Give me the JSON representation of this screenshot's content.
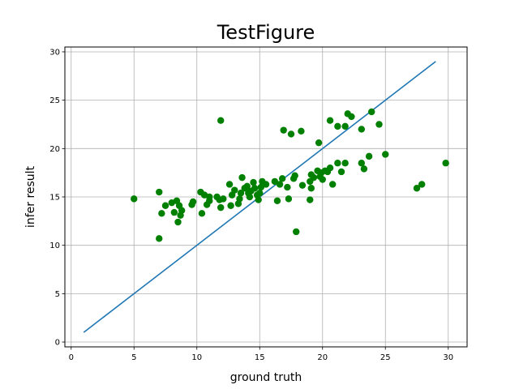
{
  "chart_data": {
    "type": "scatter",
    "title": "TestFigure",
    "xlabel": "ground truth",
    "ylabel": "infer result",
    "xlim": [
      -0.5,
      31.5
    ],
    "ylim": [
      -0.5,
      30.5
    ],
    "xticks": [
      0,
      5,
      10,
      15,
      20,
      25,
      30
    ],
    "yticks": [
      0,
      5,
      10,
      15,
      20,
      25,
      30
    ],
    "grid": true,
    "series": [
      {
        "type": "line",
        "color": "#1f77b4",
        "x": [
          1,
          29
        ],
        "y": [
          1,
          29
        ]
      },
      {
        "type": "scatter",
        "color": "#008000",
        "points": [
          [
            5.0,
            14.8
          ],
          [
            7.0,
            10.7
          ],
          [
            7.0,
            15.5
          ],
          [
            7.2,
            13.3
          ],
          [
            7.5,
            14.1
          ],
          [
            8.0,
            14.4
          ],
          [
            8.2,
            13.4
          ],
          [
            8.4,
            14.6
          ],
          [
            8.5,
            12.4
          ],
          [
            8.6,
            14.1
          ],
          [
            8.7,
            13.1
          ],
          [
            8.8,
            13.6
          ],
          [
            9.6,
            14.2
          ],
          [
            9.7,
            14.5
          ],
          [
            10.3,
            15.5
          ],
          [
            10.4,
            13.3
          ],
          [
            10.6,
            15.2
          ],
          [
            10.8,
            14.2
          ],
          [
            11.0,
            14.6
          ],
          [
            11.0,
            15.0
          ],
          [
            11.6,
            15.0
          ],
          [
            11.8,
            14.7
          ],
          [
            11.9,
            22.9
          ],
          [
            11.9,
            13.9
          ],
          [
            12.1,
            14.8
          ],
          [
            12.6,
            16.3
          ],
          [
            12.7,
            14.1
          ],
          [
            12.8,
            15.2
          ],
          [
            13.0,
            15.7
          ],
          [
            13.3,
            14.3
          ],
          [
            13.4,
            14.8
          ],
          [
            13.5,
            15.4
          ],
          [
            13.6,
            17.0
          ],
          [
            13.8,
            15.9
          ],
          [
            14.0,
            16.1
          ],
          [
            14.1,
            15.4
          ],
          [
            14.2,
            15.0
          ],
          [
            14.3,
            15.6
          ],
          [
            14.5,
            16.5
          ],
          [
            14.6,
            15.9
          ],
          [
            14.8,
            15.2
          ],
          [
            14.9,
            14.7
          ],
          [
            15.0,
            15.4
          ],
          [
            15.1,
            16.0
          ],
          [
            15.2,
            16.6
          ],
          [
            15.5,
            16.3
          ],
          [
            16.2,
            16.6
          ],
          [
            16.4,
            14.6
          ],
          [
            16.6,
            16.3
          ],
          [
            16.8,
            16.9
          ],
          [
            16.9,
            21.9
          ],
          [
            17.2,
            16.0
          ],
          [
            17.3,
            14.8
          ],
          [
            17.5,
            21.5
          ],
          [
            17.7,
            16.9
          ],
          [
            17.8,
            17.2
          ],
          [
            17.9,
            11.4
          ],
          [
            18.3,
            21.8
          ],
          [
            18.4,
            16.2
          ],
          [
            19.0,
            14.7
          ],
          [
            19.0,
            16.6
          ],
          [
            19.1,
            15.9
          ],
          [
            19.1,
            17.3
          ],
          [
            19.3,
            17.0
          ],
          [
            19.6,
            17.7
          ],
          [
            19.7,
            20.6
          ],
          [
            19.8,
            17.1
          ],
          [
            19.9,
            17.5
          ],
          [
            20.0,
            16.8
          ],
          [
            20.2,
            17.7
          ],
          [
            20.4,
            17.6
          ],
          [
            20.6,
            18.0
          ],
          [
            20.6,
            22.9
          ],
          [
            20.8,
            16.3
          ],
          [
            21.2,
            22.3
          ],
          [
            21.2,
            18.5
          ],
          [
            21.5,
            17.6
          ],
          [
            21.8,
            18.5
          ],
          [
            21.8,
            22.3
          ],
          [
            22.0,
            23.6
          ],
          [
            22.3,
            23.3
          ],
          [
            23.1,
            22.0
          ],
          [
            23.1,
            18.5
          ],
          [
            23.3,
            17.9
          ],
          [
            23.7,
            19.2
          ],
          [
            23.9,
            23.8
          ],
          [
            24.5,
            22.5
          ],
          [
            25.0,
            19.4
          ],
          [
            27.5,
            15.9
          ],
          [
            27.9,
            16.3
          ],
          [
            29.8,
            18.5
          ]
        ]
      }
    ]
  }
}
